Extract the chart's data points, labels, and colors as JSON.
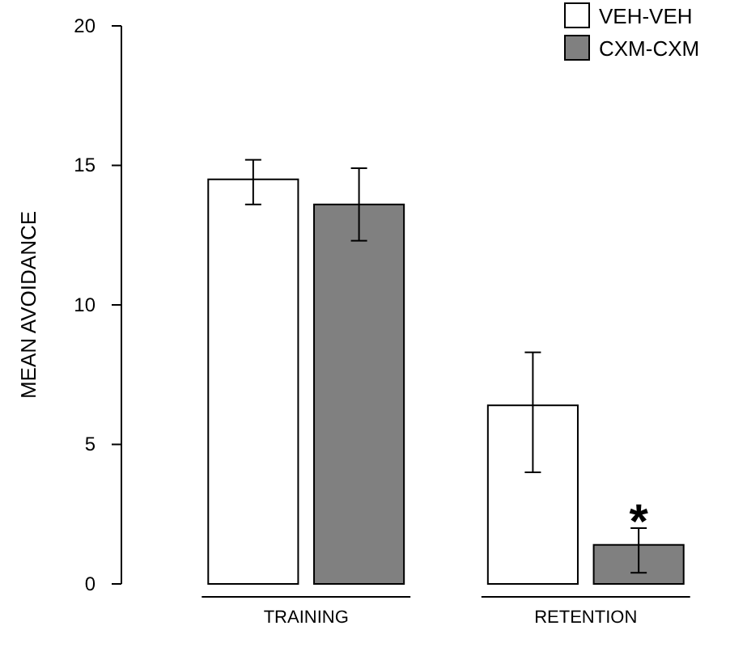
{
  "chart_data": {
    "type": "bar",
    "ylabel": "MEAN AVOIDANCE",
    "categories": [
      "TRAINING",
      "RETENTION"
    ],
    "series": [
      {
        "name": "VEH-VEH",
        "color": "#ffffff",
        "values": [
          14.5,
          6.4
        ],
        "errors": [
          [
            13.6,
            15.2
          ],
          [
            4.0,
            8.3
          ]
        ]
      },
      {
        "name": "CXM-CXM",
        "color": "#808080",
        "values": [
          13.6,
          1.4
        ],
        "errors": [
          [
            12.3,
            14.9
          ],
          [
            0.4,
            2.0
          ]
        ]
      }
    ],
    "ylim": [
      0,
      20
    ],
    "yticks": [
      0,
      5,
      10,
      15,
      20
    ],
    "grid": false,
    "legend": "top right",
    "annotations": [
      {
        "text": "*",
        "x": "RETENTION",
        "y": 2.0
      }
    ]
  }
}
